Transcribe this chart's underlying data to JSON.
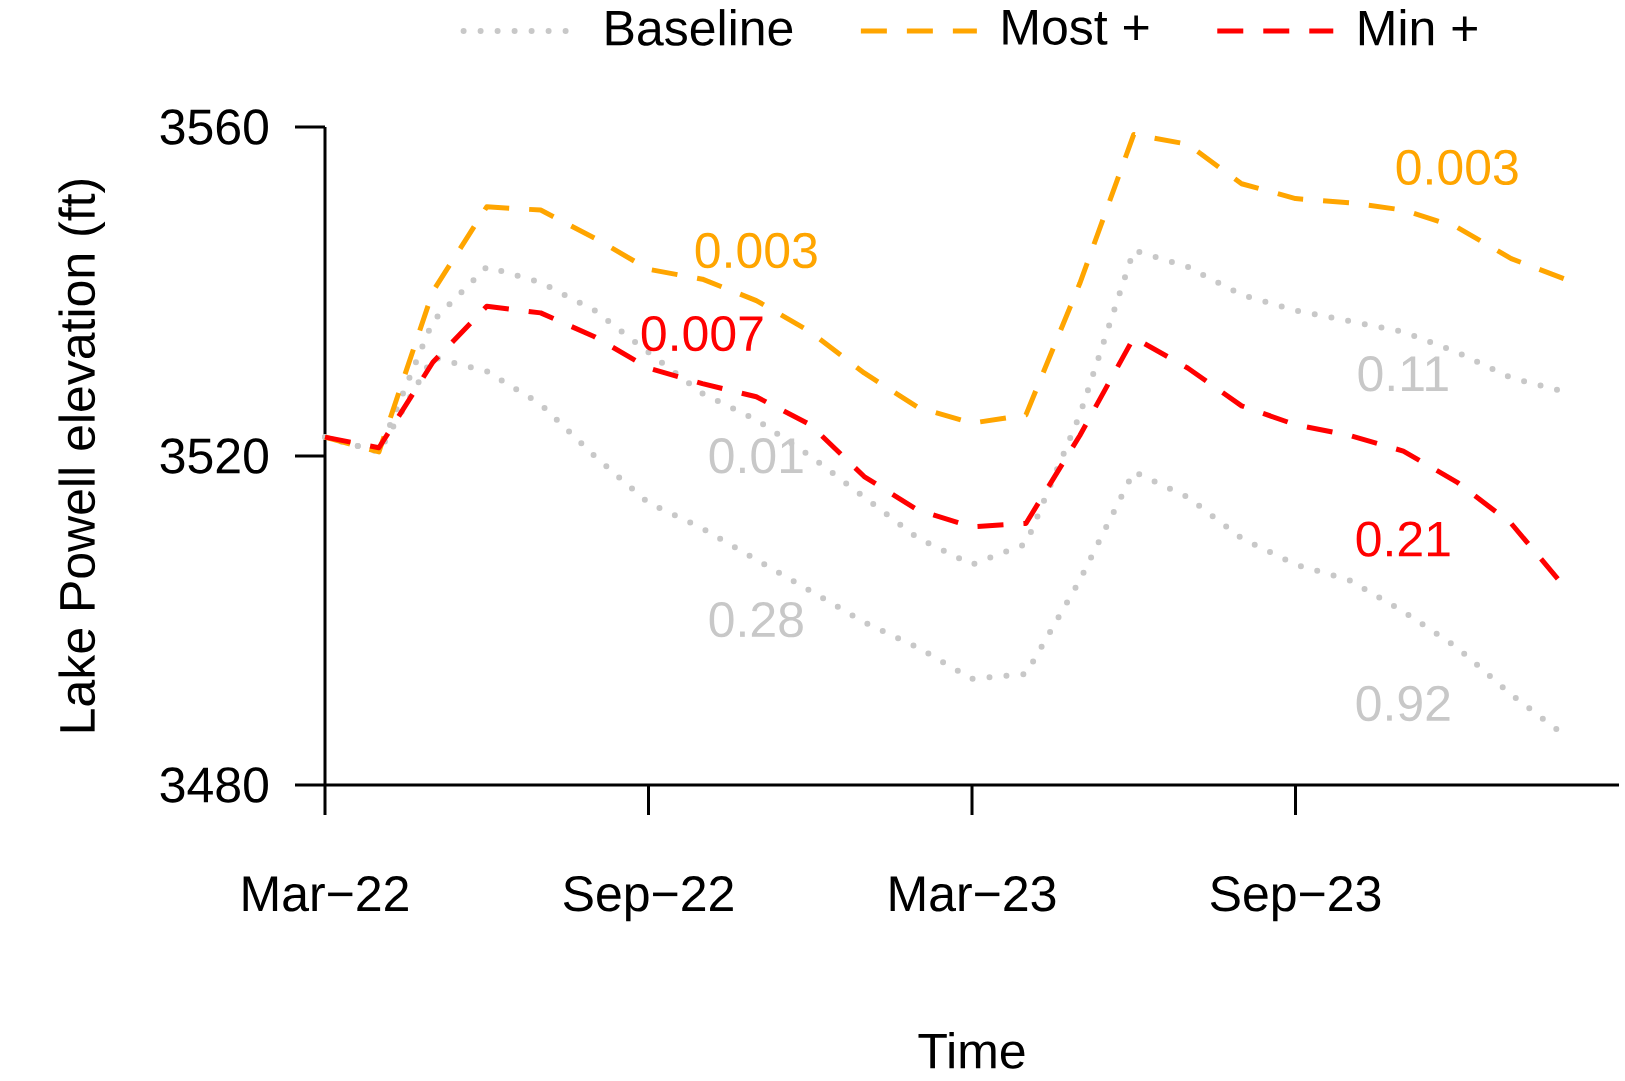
{
  "chart_data": {
    "type": "line",
    "xlabel": "Time",
    "ylabel": "Lake Powell elevation (ft)",
    "x": [
      "2022-03",
      "2022-04",
      "2022-05",
      "2022-06",
      "2022-07",
      "2022-08",
      "2022-09",
      "2022-10",
      "2022-11",
      "2022-12",
      "2023-01",
      "2023-02",
      "2023-03",
      "2023-04",
      "2023-05",
      "2023-06",
      "2023-07",
      "2023-08",
      "2023-09",
      "2023-10",
      "2023-11",
      "2023-12",
      "2024-01",
      "2024-02"
    ],
    "series": [
      {
        "name": "Baseline",
        "color": "#c8c8c8",
        "line_style": "dotted",
        "values": [
          3522.3,
          3520.5,
          3536.4,
          3543,
          3541.1,
          3537.7,
          3532.6,
          3527.6,
          3524.4,
          3520,
          3515,
          3510,
          3506.8,
          3509.3,
          3525,
          3545,
          3543,
          3539.6,
          3537.7,
          3536.4,
          3535.1,
          3532.6,
          3529.5,
          3527.8
        ]
      },
      {
        "color": "#c8c8c8",
        "line_style": "dotted",
        "values": [
          3522.3,
          3520.5,
          3532,
          3530.3,
          3526.3,
          3520,
          3514.3,
          3511.2,
          3507.4,
          3503.6,
          3499.8,
          3496.7,
          3492.9,
          3493.5,
          3504.9,
          3518.1,
          3515,
          3510,
          3506.8,
          3504.9,
          3501.1,
          3496.7,
          3491,
          3486
        ]
      },
      {
        "name": "Most +",
        "color": "#ffa500",
        "line_style": "dashed",
        "values": [
          3522.3,
          3520.5,
          3540,
          3550.3,
          3549.9,
          3546.5,
          3542.7,
          3541.5,
          3538.9,
          3535.1,
          3530.1,
          3525.9,
          3524,
          3525,
          3541,
          3559.1,
          3557.9,
          3553.1,
          3551.3,
          3550.8,
          3549.9,
          3547.8,
          3544,
          3541.5
        ]
      },
      {
        "name": "Min +",
        "color": "#ff0000",
        "line_style": "dashed",
        "values": [
          3522.3,
          3521,
          3531.4,
          3538.2,
          3537.4,
          3534.5,
          3530.7,
          3528.8,
          3527.2,
          3523.8,
          3517.5,
          3513.4,
          3511.4,
          3511.8,
          3522.5,
          3534.4,
          3530.7,
          3526.1,
          3523.8,
          3522.5,
          3520.6,
          3516.8,
          3511.8,
          3504
        ]
      }
    ],
    "xlim": [
      "2022-03",
      "2024-03"
    ],
    "xticks": [
      {
        "value": "2022-03",
        "label": "Mar−22"
      },
      {
        "value": "2022-09",
        "label": "Sep−22"
      },
      {
        "value": "2023-03",
        "label": "Mar−23"
      },
      {
        "value": "2023-09",
        "label": "Sep−23"
      }
    ],
    "ylim": [
      3480,
      3560
    ],
    "yticks": [
      3480,
      3520,
      3560
    ],
    "legend": "top",
    "annotations": [
      "0.003",
      "0.007",
      "0.01",
      "0.28",
      "0.003",
      "0.11",
      "0.21",
      "0.92"
    ]
  }
}
